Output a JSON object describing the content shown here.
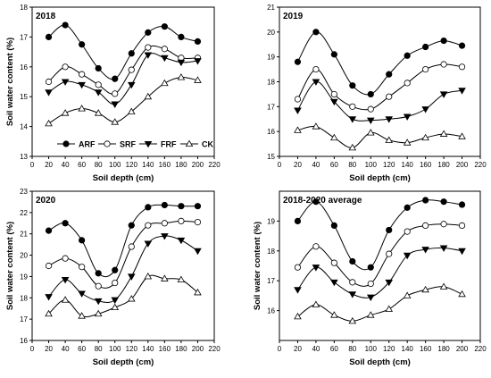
{
  "chart_data": [
    {
      "type": "line",
      "title": "2018",
      "xlabel": "Soil depth (cm)",
      "ylabel": "Soil water content (%)",
      "xlim": [
        0,
        220
      ],
      "ylim": [
        13,
        18
      ],
      "xticks": [
        0,
        20,
        40,
        60,
        80,
        100,
        120,
        140,
        160,
        180,
        200,
        220
      ],
      "yticks": [
        13,
        14,
        15,
        16,
        17,
        18
      ],
      "x": [
        20,
        40,
        60,
        80,
        100,
        120,
        140,
        160,
        180,
        200
      ],
      "legend_position": "bottom-right",
      "series": [
        {
          "name": "ARF",
          "marker": "filled-circle",
          "values": [
            17.0,
            17.4,
            16.75,
            15.95,
            15.6,
            16.45,
            17.15,
            17.35,
            17.0,
            16.85
          ]
        },
        {
          "name": "SRF",
          "marker": "open-circle",
          "values": [
            15.5,
            16.0,
            15.75,
            15.4,
            15.1,
            15.9,
            16.65,
            16.6,
            16.3,
            16.3
          ]
        },
        {
          "name": "FRF",
          "marker": "filled-triangle-down",
          "values": [
            15.15,
            15.5,
            15.4,
            15.15,
            14.75,
            15.4,
            16.4,
            16.3,
            16.15,
            16.2
          ]
        },
        {
          "name": "CK",
          "marker": "open-triangle-up",
          "values": [
            14.1,
            14.45,
            14.6,
            14.45,
            14.15,
            14.5,
            15.0,
            15.45,
            15.65,
            15.55
          ]
        }
      ]
    },
    {
      "type": "line",
      "title": "2019",
      "xlabel": "Soil depth (cm)",
      "ylabel": "",
      "xlim": [
        0,
        220
      ],
      "ylim": [
        15,
        21
      ],
      "xticks": [
        0,
        20,
        40,
        60,
        80,
        100,
        120,
        140,
        160,
        180,
        200,
        220
      ],
      "yticks": [
        15,
        16,
        17,
        18,
        19,
        20,
        21
      ],
      "x": [
        20,
        40,
        60,
        80,
        100,
        120,
        140,
        160,
        180,
        200
      ],
      "series": [
        {
          "name": "ARF",
          "marker": "filled-circle",
          "values": [
            18.8,
            20.0,
            19.1,
            17.85,
            17.5,
            18.3,
            19.05,
            19.4,
            19.65,
            19.45
          ]
        },
        {
          "name": "SRF",
          "marker": "open-circle",
          "values": [
            17.3,
            18.5,
            17.5,
            17.0,
            16.9,
            17.4,
            17.95,
            18.5,
            18.7,
            18.6
          ]
        },
        {
          "name": "FRF",
          "marker": "filled-triangle-down",
          "values": [
            16.85,
            18.0,
            17.2,
            16.5,
            16.45,
            16.5,
            16.6,
            16.9,
            17.5,
            17.65
          ]
        },
        {
          "name": "CK",
          "marker": "open-triangle-up",
          "values": [
            16.05,
            16.2,
            15.75,
            15.35,
            15.95,
            15.65,
            15.55,
            15.75,
            15.9,
            15.8
          ]
        }
      ]
    },
    {
      "type": "line",
      "title": "2020",
      "xlabel": "Soil depth (cm)",
      "ylabel": "Soil water content (%)",
      "xlim": [
        0,
        220
      ],
      "ylim": [
        16,
        23
      ],
      "xticks": [
        0,
        20,
        40,
        60,
        80,
        100,
        120,
        140,
        160,
        180,
        200,
        220
      ],
      "yticks": [
        16,
        17,
        18,
        19,
        20,
        21,
        22,
        23
      ],
      "x": [
        20,
        40,
        60,
        80,
        100,
        120,
        140,
        160,
        180,
        200
      ],
      "series": [
        {
          "name": "ARF",
          "marker": "filled-circle",
          "values": [
            21.15,
            21.5,
            20.7,
            19.15,
            19.3,
            21.4,
            22.25,
            22.35,
            22.3,
            22.3
          ]
        },
        {
          "name": "SRF",
          "marker": "open-circle",
          "values": [
            19.5,
            19.85,
            19.45,
            18.55,
            18.7,
            20.4,
            21.4,
            21.5,
            21.6,
            21.55
          ]
        },
        {
          "name": "FRF",
          "marker": "filled-triangle-down",
          "values": [
            18.05,
            18.85,
            18.2,
            17.85,
            17.9,
            19.0,
            20.55,
            20.9,
            20.7,
            20.2
          ]
        },
        {
          "name": "CK",
          "marker": "open-triangle-up",
          "values": [
            17.25,
            17.9,
            17.15,
            17.25,
            17.55,
            17.95,
            19.0,
            18.9,
            18.85,
            18.25
          ]
        }
      ]
    },
    {
      "type": "line",
      "title": "2018-2020 average",
      "xlabel": "Soil depth (cm)",
      "ylabel": "Soil water content (%)",
      "xlim": [
        0,
        220
      ],
      "ylim": [
        15,
        20
      ],
      "xticks": [
        0,
        20,
        40,
        60,
        80,
        100,
        120,
        140,
        160,
        180,
        200,
        220
      ],
      "yticks": [
        16,
        17,
        18,
        19
      ],
      "x": [
        20,
        40,
        60,
        80,
        100,
        120,
        140,
        160,
        180,
        200
      ],
      "series": [
        {
          "name": "ARF",
          "marker": "filled-circle",
          "values": [
            19.0,
            19.65,
            18.85,
            17.65,
            17.45,
            18.7,
            19.45,
            19.7,
            19.65,
            19.55
          ]
        },
        {
          "name": "SRF",
          "marker": "open-circle",
          "values": [
            17.45,
            18.15,
            17.6,
            16.95,
            16.9,
            17.9,
            18.65,
            18.85,
            18.9,
            18.85
          ]
        },
        {
          "name": "FRF",
          "marker": "filled-triangle-down",
          "values": [
            16.7,
            17.45,
            16.95,
            16.55,
            16.45,
            16.95,
            17.85,
            18.05,
            18.1,
            18.0
          ]
        },
        {
          "name": "CK",
          "marker": "open-triangle-up",
          "values": [
            15.8,
            16.2,
            15.85,
            15.65,
            15.85,
            16.05,
            16.5,
            16.7,
            16.8,
            16.55
          ]
        }
      ]
    }
  ]
}
